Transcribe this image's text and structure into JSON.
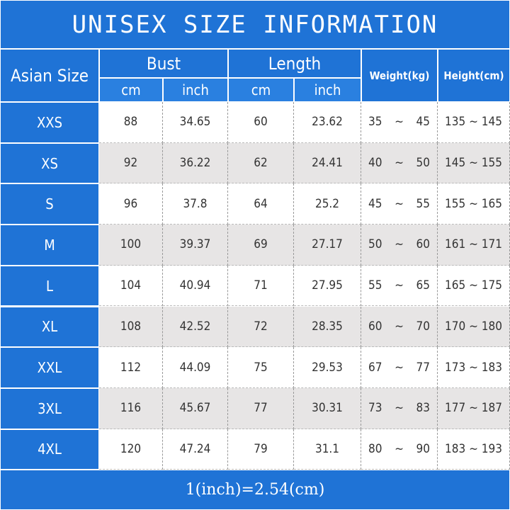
{
  "title": "UNISEX SIZE INFORMATION",
  "header": {
    "size": "Asian Size",
    "bust": "Bust",
    "length": "Length",
    "weight": "Weight(kg)",
    "height": "Height(cm)",
    "units": [
      "cm",
      "inch",
      "cm",
      "inch"
    ]
  },
  "separator": "~",
  "table": {
    "rows": [
      [
        "XXS",
        "88",
        "34.65",
        "60",
        "23.62",
        "35",
        "45",
        "135",
        "145"
      ],
      [
        "XS",
        "92",
        "36.22",
        "62",
        "24.41",
        "40",
        "50",
        "145",
        "155"
      ],
      [
        "S",
        "96",
        "37.8",
        "64",
        "25.2",
        "45",
        "55",
        "155",
        "165"
      ],
      [
        "M",
        "100",
        "39.37",
        "69",
        "27.17",
        "50",
        "60",
        "161",
        "171"
      ],
      [
        "L",
        "104",
        "40.94",
        "71",
        "27.95",
        "55",
        "65",
        "165",
        "175"
      ],
      [
        "XL",
        "108",
        "42.52",
        "72",
        "28.35",
        "60",
        "70",
        "170",
        "180"
      ],
      [
        "XXL",
        "112",
        "44.09",
        "75",
        "29.53",
        "67",
        "77",
        "173",
        "183"
      ],
      [
        "3XL",
        "116",
        "45.67",
        "77",
        "30.31",
        "73",
        "83",
        "177",
        "187"
      ],
      [
        "4XL",
        "120",
        "47.24",
        "79",
        "31.1",
        "80",
        "90",
        "183",
        "193"
      ]
    ]
  },
  "footer": "1(inch)=2.54(cm)"
}
